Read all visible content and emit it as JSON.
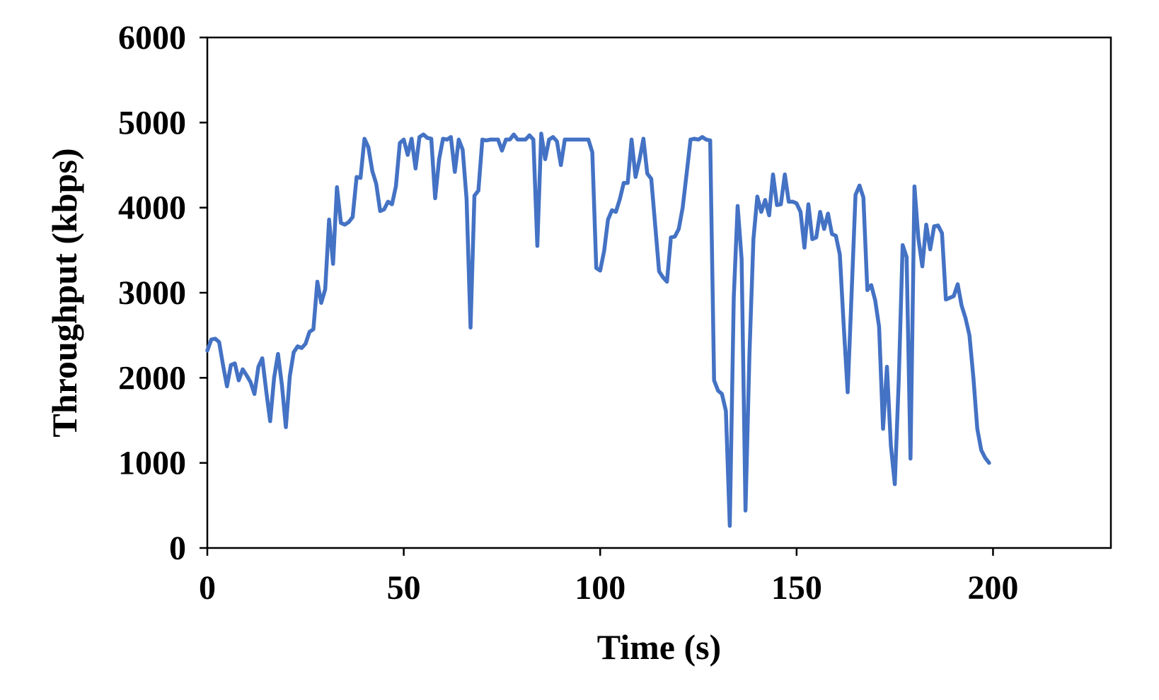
{
  "chart_data": {
    "type": "line",
    "title": "",
    "xlabel": "Time (s)",
    "ylabel": "Throughput (kbps)",
    "xlim": [
      0,
      230
    ],
    "ylim": [
      0,
      6000
    ],
    "x_ticks": [
      0,
      50,
      100,
      150,
      200
    ],
    "y_ticks": [
      0,
      1000,
      2000,
      3000,
      4000,
      5000,
      6000
    ],
    "grid": false,
    "legend": "none",
    "series": [
      {
        "color": "#4472C4",
        "points": [
          [
            0,
            2320
          ],
          [
            1,
            2450
          ],
          [
            2,
            2460
          ],
          [
            3,
            2420
          ],
          [
            4,
            2150
          ],
          [
            5,
            1900
          ],
          [
            6,
            2150
          ],
          [
            7,
            2170
          ],
          [
            8,
            1970
          ],
          [
            9,
            2100
          ],
          [
            10,
            2030
          ],
          [
            11,
            1950
          ],
          [
            12,
            1810
          ],
          [
            13,
            2130
          ],
          [
            14,
            2230
          ],
          [
            15,
            1840
          ],
          [
            16,
            1490
          ],
          [
            17,
            2000
          ],
          [
            18,
            2280
          ],
          [
            19,
            1910
          ],
          [
            20,
            1420
          ],
          [
            21,
            2020
          ],
          [
            22,
            2300
          ],
          [
            23,
            2370
          ],
          [
            24,
            2350
          ],
          [
            25,
            2400
          ],
          [
            26,
            2540
          ],
          [
            27,
            2570
          ],
          [
            28,
            3130
          ],
          [
            29,
            2880
          ],
          [
            30,
            3040
          ],
          [
            31,
            3860
          ],
          [
            32,
            3340
          ],
          [
            33,
            4240
          ],
          [
            34,
            3820
          ],
          [
            35,
            3800
          ],
          [
            36,
            3830
          ],
          [
            37,
            3890
          ],
          [
            38,
            4360
          ],
          [
            39,
            4350
          ],
          [
            40,
            4810
          ],
          [
            41,
            4710
          ],
          [
            42,
            4430
          ],
          [
            43,
            4280
          ],
          [
            44,
            3960
          ],
          [
            45,
            3980
          ],
          [
            46,
            4070
          ],
          [
            47,
            4040
          ],
          [
            48,
            4250
          ],
          [
            49,
            4760
          ],
          [
            50,
            4800
          ],
          [
            51,
            4620
          ],
          [
            52,
            4810
          ],
          [
            53,
            4460
          ],
          [
            54,
            4830
          ],
          [
            55,
            4860
          ],
          [
            56,
            4820
          ],
          [
            57,
            4810
          ],
          [
            58,
            4110
          ],
          [
            59,
            4570
          ],
          [
            60,
            4810
          ],
          [
            61,
            4800
          ],
          [
            62,
            4830
          ],
          [
            63,
            4420
          ],
          [
            64,
            4800
          ],
          [
            65,
            4680
          ],
          [
            66,
            4100
          ],
          [
            67,
            2590
          ],
          [
            68,
            4140
          ],
          [
            69,
            4200
          ],
          [
            70,
            4800
          ],
          [
            71,
            4790
          ],
          [
            72,
            4800
          ],
          [
            73,
            4800
          ],
          [
            74,
            4800
          ],
          [
            75,
            4670
          ],
          [
            76,
            4800
          ],
          [
            77,
            4800
          ],
          [
            78,
            4860
          ],
          [
            79,
            4800
          ],
          [
            80,
            4800
          ],
          [
            81,
            4800
          ],
          [
            82,
            4850
          ],
          [
            83,
            4800
          ],
          [
            84,
            3550
          ],
          [
            85,
            4870
          ],
          [
            86,
            4570
          ],
          [
            87,
            4800
          ],
          [
            88,
            4830
          ],
          [
            89,
            4780
          ],
          [
            90,
            4500
          ],
          [
            91,
            4800
          ],
          [
            92,
            4800
          ],
          [
            93,
            4800
          ],
          [
            94,
            4800
          ],
          [
            95,
            4800
          ],
          [
            96,
            4800
          ],
          [
            97,
            4800
          ],
          [
            98,
            4650
          ],
          [
            99,
            3290
          ],
          [
            100,
            3260
          ],
          [
            101,
            3490
          ],
          [
            102,
            3860
          ],
          [
            103,
            3970
          ],
          [
            104,
            3950
          ],
          [
            105,
            4100
          ],
          [
            106,
            4290
          ],
          [
            107,
            4290
          ],
          [
            108,
            4800
          ],
          [
            109,
            4360
          ],
          [
            110,
            4560
          ],
          [
            111,
            4810
          ],
          [
            112,
            4400
          ],
          [
            113,
            4340
          ],
          [
            114,
            3800
          ],
          [
            115,
            3250
          ],
          [
            116,
            3180
          ],
          [
            117,
            3130
          ],
          [
            118,
            3650
          ],
          [
            119,
            3660
          ],
          [
            120,
            3750
          ],
          [
            121,
            4000
          ],
          [
            122,
            4400
          ],
          [
            123,
            4800
          ],
          [
            124,
            4810
          ],
          [
            125,
            4800
          ],
          [
            126,
            4830
          ],
          [
            127,
            4800
          ],
          [
            128,
            4790
          ],
          [
            129,
            1970
          ],
          [
            130,
            1850
          ],
          [
            131,
            1810
          ],
          [
            132,
            1610
          ],
          [
            133,
            260
          ],
          [
            134,
            2940
          ],
          [
            135,
            4020
          ],
          [
            136,
            3400
          ],
          [
            137,
            440
          ],
          [
            138,
            2280
          ],
          [
            139,
            3630
          ],
          [
            140,
            4130
          ],
          [
            141,
            3950
          ],
          [
            142,
            4090
          ],
          [
            143,
            3910
          ],
          [
            144,
            4390
          ],
          [
            145,
            4030
          ],
          [
            146,
            4040
          ],
          [
            147,
            4390
          ],
          [
            148,
            4070
          ],
          [
            149,
            4070
          ],
          [
            150,
            4050
          ],
          [
            151,
            3950
          ],
          [
            152,
            3530
          ],
          [
            153,
            4040
          ],
          [
            154,
            3630
          ],
          [
            155,
            3650
          ],
          [
            156,
            3950
          ],
          [
            157,
            3750
          ],
          [
            158,
            3930
          ],
          [
            159,
            3690
          ],
          [
            160,
            3670
          ],
          [
            161,
            3450
          ],
          [
            162,
            2600
          ],
          [
            163,
            1830
          ],
          [
            164,
            3000
          ],
          [
            165,
            4150
          ],
          [
            166,
            4260
          ],
          [
            167,
            4120
          ],
          [
            168,
            3030
          ],
          [
            169,
            3090
          ],
          [
            170,
            2910
          ],
          [
            171,
            2600
          ],
          [
            172,
            1400
          ],
          [
            173,
            2130
          ],
          [
            174,
            1200
          ],
          [
            175,
            750
          ],
          [
            176,
            1970
          ],
          [
            177,
            3560
          ],
          [
            178,
            3420
          ],
          [
            179,
            1050
          ],
          [
            180,
            4250
          ],
          [
            181,
            3640
          ],
          [
            182,
            3310
          ],
          [
            183,
            3800
          ],
          [
            184,
            3510
          ],
          [
            185,
            3780
          ],
          [
            186,
            3790
          ],
          [
            187,
            3700
          ],
          [
            188,
            2920
          ],
          [
            189,
            2940
          ],
          [
            190,
            2960
          ],
          [
            191,
            3100
          ],
          [
            192,
            2850
          ],
          [
            193,
            2700
          ],
          [
            194,
            2500
          ],
          [
            195,
            2000
          ],
          [
            196,
            1400
          ],
          [
            197,
            1150
          ],
          [
            198,
            1060
          ],
          [
            199,
            1000
          ]
        ]
      }
    ]
  }
}
